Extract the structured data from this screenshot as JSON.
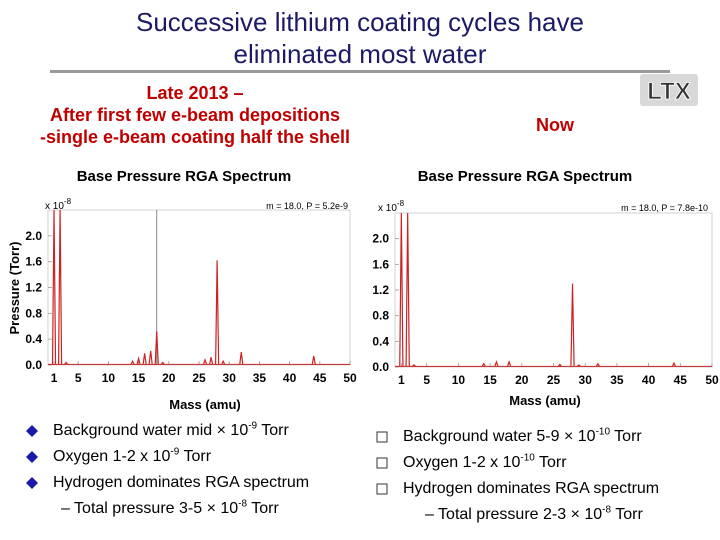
{
  "slide": {
    "title_line1": "Successive lithium coating cycles have",
    "title_line2": "eliminated most water",
    "logo_text": "LTX"
  },
  "left": {
    "caption_lines": [
      "Late 2013 –",
      "After first few e-beam depositions",
      "-single e-beam coating half the shell"
    ],
    "bullets": [
      {
        "text": "Background water mid × 10",
        "sup": "-9",
        "unit": " Torr"
      },
      {
        "text": "Oxygen 1-2 x 10",
        "sup": "-9",
        "unit": " Torr"
      },
      {
        "text": "Hydrogen dominates RGA spectrum",
        "sup": "",
        "unit": ""
      }
    ],
    "sub": {
      "text": "– Total pressure 3-5 × 10",
      "sup": "-8",
      "unit": " Torr"
    },
    "bullet_color": "#1a1aa8"
  },
  "right": {
    "caption": "Now",
    "bullets": [
      {
        "text": "Background water 5-9 × 10",
        "sup": "-10",
        "unit": " Torr"
      },
      {
        "text": "Oxygen 1-2 x 10",
        "sup": "-10",
        "unit": " Torr"
      },
      {
        "text": "Hydrogen dominates RGA spectrum",
        "sup": "",
        "unit": ""
      }
    ],
    "sub": {
      "text": "– Total pressure 2-3 × 10",
      "sup": "-8",
      "unit": " Torr"
    }
  },
  "chart_data": [
    {
      "type": "line",
      "title": "Base Pressure RGA Spectrum",
      "multiplier_base": "x 10",
      "multiplier_exp": "-8",
      "readout": "m = 18.0, P = 5.2e-9",
      "xlabel": "Mass (amu)",
      "ylabel": "Pressure (Torr)",
      "xticks": [
        1,
        5,
        10,
        15,
        20,
        25,
        30,
        35,
        40,
        45,
        50
      ],
      "yticks": [
        "0.0",
        "0.4",
        "0.8",
        "1.2",
        "1.6",
        "2.0"
      ],
      "xlim": [
        0,
        50
      ],
      "ylim": [
        0,
        2.4
      ],
      "cursor_x": 18,
      "line_color": "#cc2222",
      "peaks": [
        {
          "x": 1,
          "y": 2.4
        },
        {
          "x": 2,
          "y": 2.4
        },
        {
          "x": 3,
          "y": 0.04
        },
        {
          "x": 14,
          "y": 0.06
        },
        {
          "x": 15,
          "y": 0.1
        },
        {
          "x": 16,
          "y": 0.18
        },
        {
          "x": 17,
          "y": 0.22
        },
        {
          "x": 18,
          "y": 0.52
        },
        {
          "x": 19,
          "y": 0.04
        },
        {
          "x": 26,
          "y": 0.08
        },
        {
          "x": 27,
          "y": 0.12
        },
        {
          "x": 28,
          "y": 1.62
        },
        {
          "x": 29,
          "y": 0.06
        },
        {
          "x": 32,
          "y": 0.2
        },
        {
          "x": 44,
          "y": 0.14
        }
      ]
    },
    {
      "type": "line",
      "title": "Base Pressure RGA Spectrum",
      "multiplier_base": "x 10",
      "multiplier_exp": "-8",
      "readout": "m = 18.0, P = 7.8e-10",
      "xlabel": "Mass (amu)",
      "ylabel": "",
      "xticks": [
        1,
        5,
        10,
        15,
        20,
        25,
        30,
        35,
        40,
        45,
        50
      ],
      "yticks": [
        "0.0",
        "0.4",
        "0.8",
        "1.2",
        "1.6",
        "2.0"
      ],
      "xlim": [
        0,
        50
      ],
      "ylim": [
        0,
        2.4
      ],
      "cursor_x": null,
      "line_color": "#cc2222",
      "peaks": [
        {
          "x": 1,
          "y": 2.4
        },
        {
          "x": 2,
          "y": 2.4
        },
        {
          "x": 3,
          "y": 0.03
        },
        {
          "x": 14,
          "y": 0.05
        },
        {
          "x": 16,
          "y": 0.08
        },
        {
          "x": 18,
          "y": 0.08
        },
        {
          "x": 26,
          "y": 0.04
        },
        {
          "x": 28,
          "y": 1.3
        },
        {
          "x": 29,
          "y": 0.03
        },
        {
          "x": 32,
          "y": 0.05
        },
        {
          "x": 44,
          "y": 0.06
        }
      ]
    }
  ]
}
